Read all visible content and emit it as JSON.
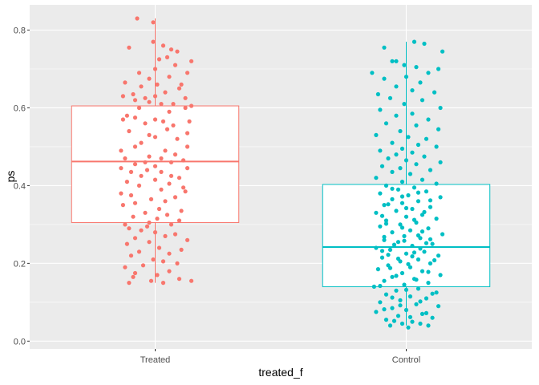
{
  "chart_data": {
    "type": "boxplot",
    "xlabel": "treated_f",
    "ylabel": "ps",
    "categories": [
      "Treated",
      "Control"
    ],
    "ylim": [
      -0.02,
      0.865
    ],
    "yticks": [
      0.0,
      0.2,
      0.4,
      0.6,
      0.8
    ],
    "ytick_labels": [
      "0.0",
      "0.2",
      "0.4",
      "0.6",
      "0.8"
    ],
    "grid": true,
    "legend": "none",
    "colors": {
      "Treated": "#F8766D",
      "Control": "#00BFC4",
      "panel_bg": "#EBEBEB",
      "grid": "#FFFFFF"
    },
    "series": [
      {
        "name": "Treated",
        "whisker_low": 0.15,
        "q1": 0.305,
        "median": 0.462,
        "q3": 0.605,
        "whisker_high": 0.83
      },
      {
        "name": "Control",
        "whisker_low": 0.04,
        "q1": 0.14,
        "median": 0.242,
        "q3": 0.403,
        "whisker_high": 0.77
      }
    ],
    "points": {
      "Treated": [
        [
          0.32,
          0.83
        ],
        [
          0.48,
          0.82
        ],
        [
          0.58,
          0.76
        ],
        [
          0.48,
          0.77
        ],
        [
          0.24,
          0.755
        ],
        [
          0.66,
          0.75
        ],
        [
          0.72,
          0.745
        ],
        [
          0.62,
          0.73
        ],
        [
          0.54,
          0.725
        ],
        [
          0.86,
          0.72
        ],
        [
          0.7,
          0.71
        ],
        [
          0.5,
          0.7
        ],
        [
          0.82,
          0.69
        ],
        [
          0.64,
          0.68
        ],
        [
          0.34,
          0.69
        ],
        [
          0.44,
          0.675
        ],
        [
          0.2,
          0.665
        ],
        [
          0.52,
          0.66
        ],
        [
          0.76,
          0.66
        ],
        [
          0.36,
          0.655
        ],
        [
          0.74,
          0.65
        ],
        [
          0.6,
          0.64
        ],
        [
          0.5,
          0.63
        ],
        [
          0.28,
          0.635
        ],
        [
          0.4,
          0.625
        ],
        [
          0.18,
          0.63
        ],
        [
          0.8,
          0.625
        ],
        [
          0.3,
          0.62
        ],
        [
          0.44,
          0.615
        ],
        [
          0.56,
          0.61
        ],
        [
          0.68,
          0.61
        ],
        [
          0.86,
          0.605
        ],
        [
          0.8,
          0.6
        ],
        [
          0.34,
          0.6
        ],
        [
          0.64,
          0.59
        ],
        [
          0.22,
          0.58
        ],
        [
          0.3,
          0.575
        ],
        [
          0.5,
          0.57
        ],
        [
          0.18,
          0.57
        ],
        [
          0.58,
          0.565
        ],
        [
          0.84,
          0.565
        ],
        [
          0.4,
          0.56
        ],
        [
          0.68,
          0.555
        ],
        [
          0.62,
          0.545
        ],
        [
          0.24,
          0.54
        ],
        [
          0.82,
          0.535
        ],
        [
          0.44,
          0.53
        ],
        [
          0.5,
          0.525
        ],
        [
          0.72,
          0.52
        ],
        [
          0.36,
          0.51
        ],
        [
          0.3,
          0.5
        ],
        [
          0.82,
          0.5
        ],
        [
          0.6,
          0.49
        ],
        [
          0.16,
          0.49
        ],
        [
          0.7,
          0.48
        ],
        [
          0.44,
          0.475
        ],
        [
          0.2,
          0.47
        ],
        [
          0.56,
          0.47
        ],
        [
          0.78,
          0.465
        ],
        [
          0.4,
          0.46
        ],
        [
          0.66,
          0.46
        ],
        [
          0.3,
          0.455
        ],
        [
          0.5,
          0.45
        ],
        [
          0.16,
          0.445
        ],
        [
          0.82,
          0.445
        ],
        [
          0.42,
          0.44
        ],
        [
          0.26,
          0.435
        ],
        [
          0.56,
          0.435
        ],
        [
          0.36,
          0.425
        ],
        [
          0.66,
          0.425
        ],
        [
          0.74,
          0.42
        ],
        [
          0.5,
          0.415
        ],
        [
          0.22,
          0.41
        ],
        [
          0.64,
          0.405
        ],
        [
          0.34,
          0.4
        ],
        [
          0.78,
          0.395
        ],
        [
          0.56,
          0.39
        ],
        [
          0.8,
          0.385
        ],
        [
          0.16,
          0.38
        ],
        [
          0.26,
          0.375
        ],
        [
          0.7,
          0.37
        ],
        [
          0.46,
          0.365
        ],
        [
          0.6,
          0.36
        ],
        [
          0.3,
          0.355
        ],
        [
          0.18,
          0.35
        ],
        [
          0.54,
          0.34
        ],
        [
          0.76,
          0.335
        ],
        [
          0.4,
          0.33
        ],
        [
          0.62,
          0.325
        ],
        [
          0.28,
          0.32
        ],
        [
          0.52,
          0.315
        ],
        [
          0.44,
          0.305
        ],
        [
          0.74,
          0.31
        ],
        [
          0.2,
          0.3
        ],
        [
          0.66,
          0.3
        ],
        [
          0.42,
          0.295
        ],
        [
          0.24,
          0.29
        ],
        [
          0.36,
          0.285
        ],
        [
          0.5,
          0.28
        ],
        [
          0.7,
          0.275
        ],
        [
          0.6,
          0.27
        ],
        [
          0.3,
          0.265
        ],
        [
          0.82,
          0.26
        ],
        [
          0.44,
          0.255
        ],
        [
          0.22,
          0.25
        ],
        [
          0.54,
          0.24
        ],
        [
          0.76,
          0.235
        ],
        [
          0.34,
          0.23
        ],
        [
          0.64,
          0.225
        ],
        [
          0.26,
          0.22
        ],
        [
          0.48,
          0.21
        ],
        [
          0.58,
          0.205
        ],
        [
          0.72,
          0.2
        ],
        [
          0.38,
          0.195
        ],
        [
          0.2,
          0.19
        ],
        [
          0.64,
          0.18
        ],
        [
          0.3,
          0.175
        ],
        [
          0.52,
          0.17
        ],
        [
          0.28,
          0.165
        ],
        [
          0.74,
          0.16
        ],
        [
          0.46,
          0.155
        ],
        [
          0.86,
          0.155
        ],
        [
          0.24,
          0.15
        ],
        [
          0.58,
          0.15
        ]
      ],
      "Control": [
        [
          0.58,
          0.77
        ],
        [
          0.68,
          0.765
        ],
        [
          0.28,
          0.755
        ],
        [
          0.86,
          0.745
        ],
        [
          0.4,
          0.72
        ],
        [
          0.36,
          0.72
        ],
        [
          0.48,
          0.71
        ],
        [
          0.6,
          0.705
        ],
        [
          0.82,
          0.7
        ],
        [
          0.16,
          0.69
        ],
        [
          0.72,
          0.69
        ],
        [
          0.5,
          0.68
        ],
        [
          0.28,
          0.675
        ],
        [
          0.64,
          0.665
        ],
        [
          0.4,
          0.655
        ],
        [
          0.56,
          0.645
        ],
        [
          0.78,
          0.64
        ],
        [
          0.22,
          0.635
        ],
        [
          0.34,
          0.625
        ],
        [
          0.66,
          0.62
        ],
        [
          0.48,
          0.61
        ],
        [
          0.84,
          0.6
        ],
        [
          0.24,
          0.595
        ],
        [
          0.56,
          0.585
        ],
        [
          0.4,
          0.58
        ],
        [
          0.72,
          0.57
        ],
        [
          0.3,
          0.56
        ],
        [
          0.6,
          0.555
        ],
        [
          0.82,
          0.545
        ],
        [
          0.44,
          0.54
        ],
        [
          0.2,
          0.53
        ],
        [
          0.52,
          0.525
        ],
        [
          0.7,
          0.52
        ],
        [
          0.36,
          0.51
        ],
        [
          0.62,
          0.505
        ],
        [
          0.8,
          0.5
        ],
        [
          0.46,
          0.495
        ],
        [
          0.24,
          0.49
        ],
        [
          0.56,
          0.485
        ],
        [
          0.4,
          0.48
        ],
        [
          0.68,
          0.475
        ],
        [
          0.32,
          0.47
        ],
        [
          0.5,
          0.465
        ],
        [
          0.84,
          0.46
        ],
        [
          0.6,
          0.455
        ],
        [
          0.26,
          0.45
        ],
        [
          0.44,
          0.445
        ],
        [
          0.74,
          0.44
        ],
        [
          0.36,
          0.435
        ],
        [
          0.54,
          0.43
        ],
        [
          0.2,
          0.42
        ],
        [
          0.66,
          0.415
        ],
        [
          0.46,
          0.41
        ],
        [
          0.8,
          0.405
        ],
        [
          0.3,
          0.4
        ],
        [
          0.58,
          0.395
        ],
        [
          0.42,
          0.39
        ],
        [
          0.7,
          0.385
        ],
        [
          0.24,
          0.38
        ],
        [
          0.52,
          0.375
        ],
        [
          0.84,
          0.37
        ],
        [
          0.36,
          0.365
        ],
        [
          0.62,
          0.36
        ],
        [
          0.46,
          0.355
        ],
        [
          0.28,
          0.35
        ],
        [
          0.74,
          0.345
        ],
        [
          0.56,
          0.34
        ],
        [
          0.4,
          0.335
        ],
        [
          0.2,
          0.33
        ],
        [
          0.66,
          0.325
        ],
        [
          0.5,
          0.32
        ],
        [
          0.8,
          0.315
        ],
        [
          0.3,
          0.31
        ],
        [
          0.6,
          0.305
        ],
        [
          0.44,
          0.3
        ],
        [
          0.24,
          0.295
        ],
        [
          0.72,
          0.29
        ],
        [
          0.54,
          0.285
        ],
        [
          0.36,
          0.28
        ],
        [
          0.86,
          0.275
        ],
        [
          0.48,
          0.27
        ],
        [
          0.64,
          0.265
        ],
        [
          0.28,
          0.26
        ],
        [
          0.42,
          0.255
        ],
        [
          0.76,
          0.25
        ],
        [
          0.56,
          0.245
        ],
        [
          0.2,
          0.24
        ],
        [
          0.34,
          0.235
        ],
        [
          0.68,
          0.23
        ],
        [
          0.5,
          0.225
        ],
        [
          0.82,
          0.22
        ],
        [
          0.26,
          0.215
        ],
        [
          0.62,
          0.21
        ],
        [
          0.44,
          0.205
        ],
        [
          0.74,
          0.2
        ],
        [
          0.32,
          0.195
        ],
        [
          0.54,
          0.19
        ],
        [
          0.22,
          0.185
        ],
        [
          0.66,
          0.18
        ],
        [
          0.46,
          0.175
        ],
        [
          0.84,
          0.17
        ],
        [
          0.36,
          0.165
        ],
        [
          0.58,
          0.16
        ],
        [
          0.28,
          0.155
        ],
        [
          0.72,
          0.15
        ],
        [
          0.48,
          0.145
        ],
        [
          0.18,
          0.14
        ],
        [
          0.62,
          0.135
        ],
        [
          0.4,
          0.13
        ],
        [
          0.8,
          0.125
        ],
        [
          0.3,
          0.12
        ],
        [
          0.54,
          0.115
        ],
        [
          0.7,
          0.11
        ],
        [
          0.44,
          0.105
        ],
        [
          0.24,
          0.1
        ],
        [
          0.6,
          0.095
        ],
        [
          0.82,
          0.09
        ],
        [
          0.36,
          0.085
        ],
        [
          0.5,
          0.08
        ],
        [
          0.2,
          0.075
        ],
        [
          0.66,
          0.07
        ],
        [
          0.42,
          0.065
        ],
        [
          0.76,
          0.06
        ],
        [
          0.3,
          0.055
        ],
        [
          0.56,
          0.05
        ],
        [
          0.46,
          0.045
        ],
        [
          0.64,
          0.045
        ],
        [
          0.34,
          0.04
        ],
        [
          0.72,
          0.04
        ],
        [
          0.52,
          0.035
        ],
        [
          0.26,
          0.232
        ],
        [
          0.38,
          0.248
        ],
        [
          0.64,
          0.238
        ],
        [
          0.74,
          0.262
        ],
        [
          0.32,
          0.222
        ],
        [
          0.58,
          0.228
        ],
        [
          0.48,
          0.258
        ],
        [
          0.7,
          0.252
        ],
        [
          0.28,
          0.268
        ],
        [
          0.62,
          0.272
        ],
        [
          0.42,
          0.212
        ],
        [
          0.52,
          0.198
        ],
        [
          0.78,
          0.208
        ],
        [
          0.34,
          0.188
        ],
        [
          0.66,
          0.282
        ],
        [
          0.46,
          0.292
        ],
        [
          0.56,
          0.218
        ],
        [
          0.3,
          0.302
        ],
        [
          0.72,
          0.178
        ],
        [
          0.4,
          0.168
        ],
        [
          0.6,
          0.158
        ],
        [
          0.24,
          0.142
        ],
        [
          0.5,
          0.132
        ],
        [
          0.76,
          0.122
        ],
        [
          0.36,
          0.112
        ],
        [
          0.64,
          0.102
        ],
        [
          0.44,
          0.092
        ],
        [
          0.28,
          0.082
        ],
        [
          0.7,
          0.072
        ],
        [
          0.54,
          0.062
        ],
        [
          0.38,
          0.052
        ],
        [
          0.58,
          0.312
        ],
        [
          0.26,
          0.322
        ],
        [
          0.68,
          0.332
        ],
        [
          0.5,
          0.342
        ],
        [
          0.32,
          0.352
        ],
        [
          0.74,
          0.362
        ],
        [
          0.46,
          0.372
        ],
        [
          0.62,
          0.382
        ],
        [
          0.36,
          0.392
        ]
      ]
    }
  }
}
